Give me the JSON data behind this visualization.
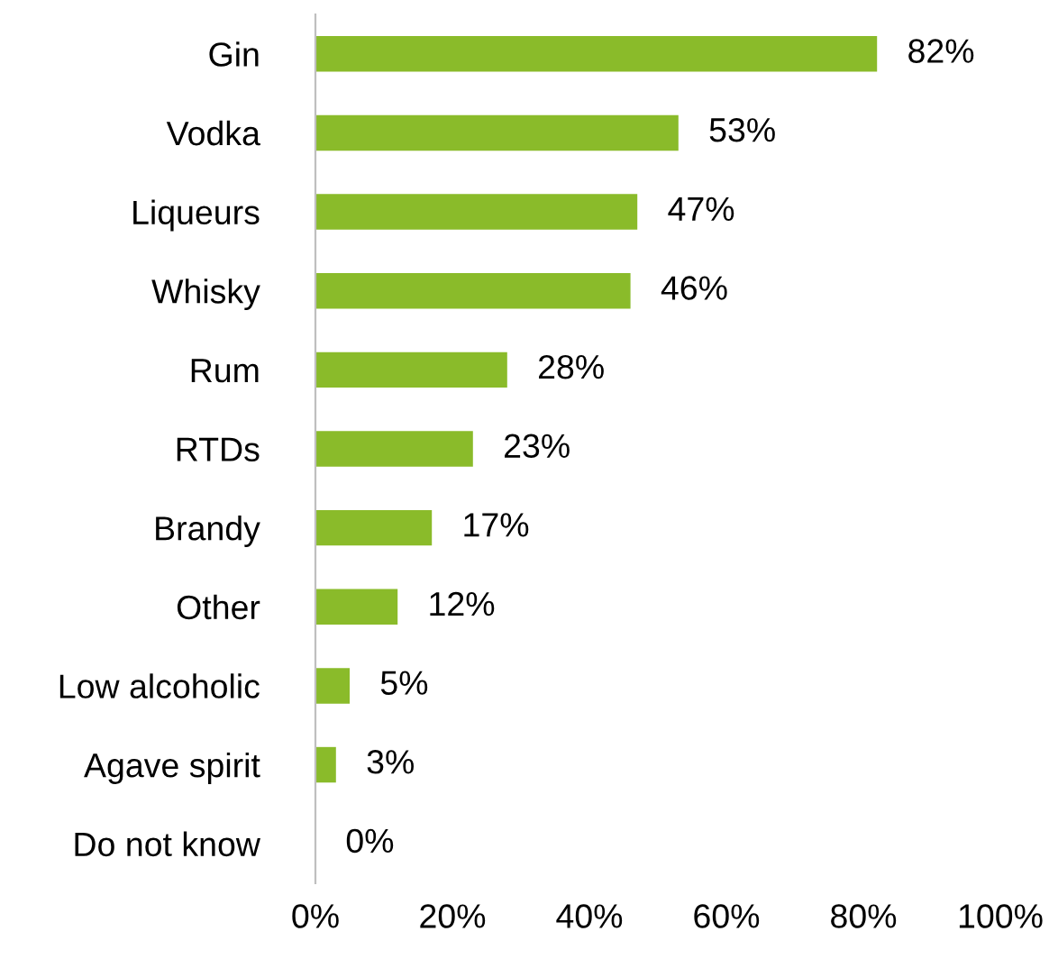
{
  "chart_data": {
    "type": "bar",
    "orientation": "horizontal",
    "categories": [
      "Gin",
      "Vodka",
      "Liqueurs",
      "Whisky",
      "Rum",
      "RTDs",
      "Brandy",
      "Other",
      "Low alcoholic",
      "Agave spirit",
      "Do not know"
    ],
    "values": [
      82,
      53,
      47,
      46,
      28,
      23,
      17,
      12,
      5,
      3,
      0
    ],
    "value_labels": [
      "82%",
      "53%",
      "47%",
      "46%",
      "28%",
      "23%",
      "17%",
      "12%",
      "5%",
      "3%",
      "0%"
    ],
    "color": "#8abb2a",
    "xlim": [
      0,
      100
    ],
    "xticks": [
      {
        "value": 0,
        "label": "0%"
      },
      {
        "value": 20,
        "label": "20%"
      },
      {
        "value": 40,
        "label": "40%"
      },
      {
        "value": 60,
        "label": "60%"
      },
      {
        "value": 80,
        "label": "80%"
      },
      {
        "value": 100,
        "label": "100%"
      }
    ],
    "grid": false,
    "legend": false
  }
}
